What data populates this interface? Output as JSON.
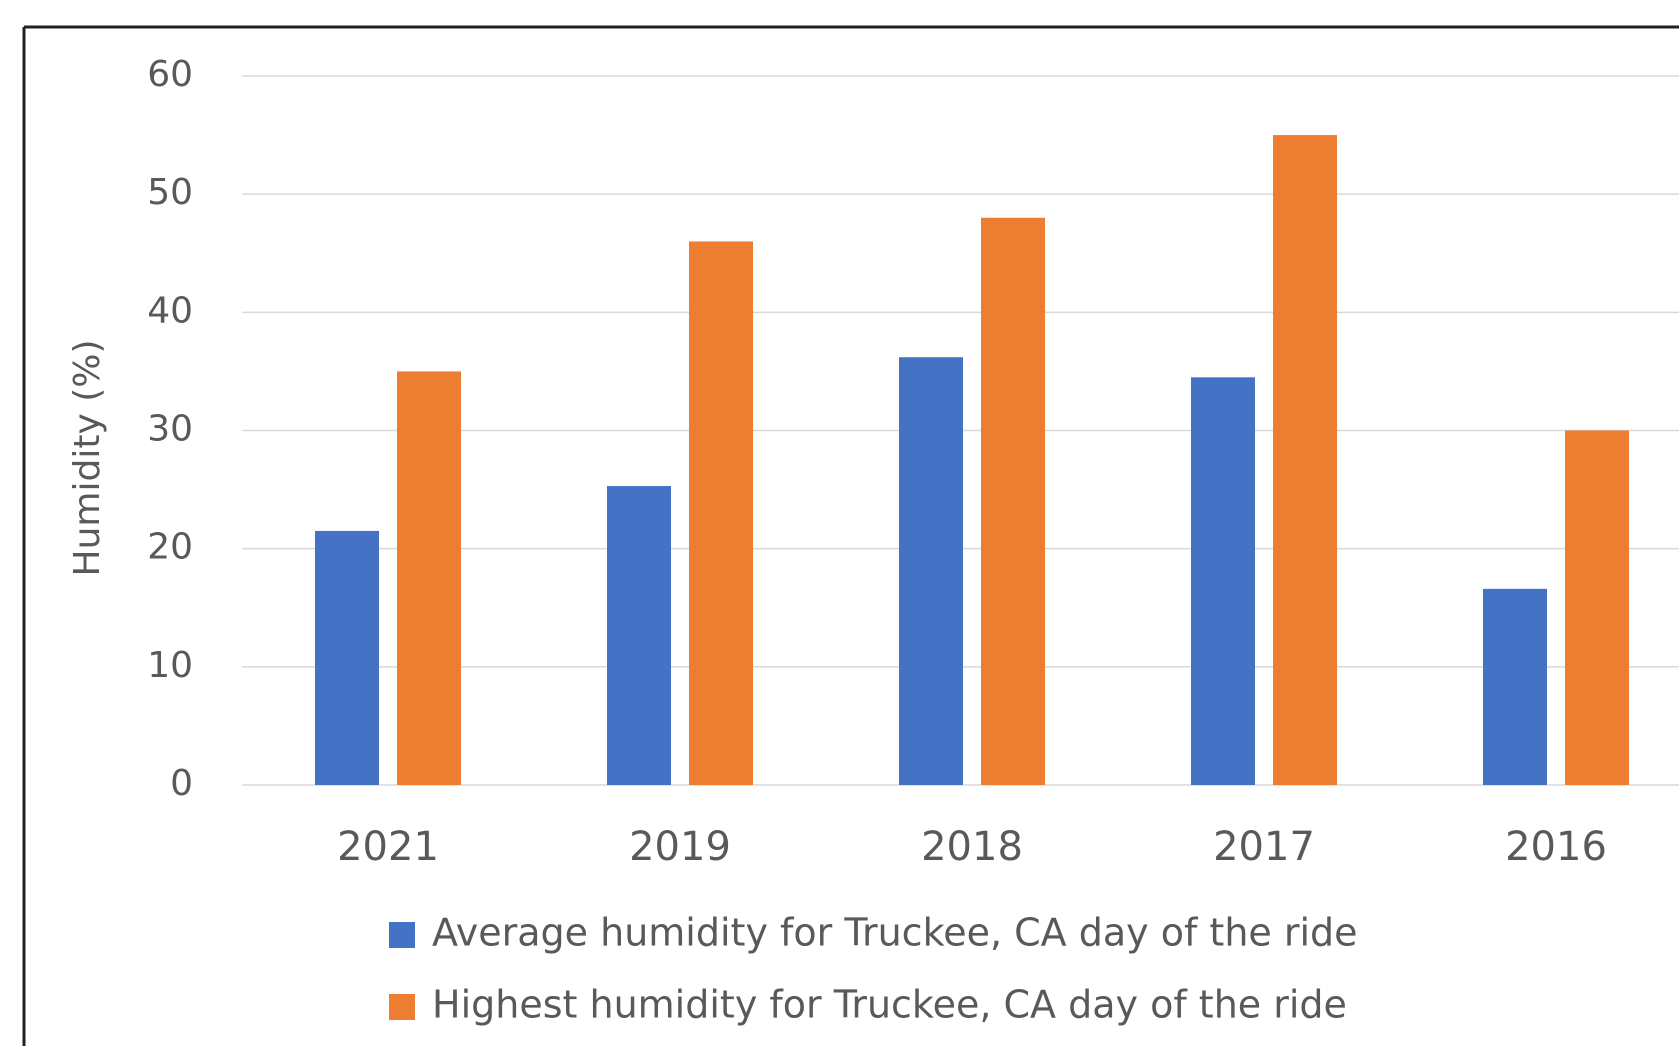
{
  "chart_data": {
    "type": "bar",
    "y_label": "Humidity (%)",
    "categories": [
      "2021",
      "2019",
      "2018",
      "2017",
      "2016"
    ],
    "series": [
      {
        "name": "Average humidity for Truckee, CA day of the ride",
        "color": "#4472c4",
        "values": [
          21.5,
          25.3,
          36.2,
          34.5,
          16.6
        ]
      },
      {
        "name": "Highest humidity for Truckee, CA day of the ride",
        "color": "#ed7d31",
        "values": [
          35,
          46,
          48,
          55,
          30
        ]
      }
    ],
    "ylim": [
      0,
      60
    ],
    "yticks": [
      0,
      10,
      20,
      30,
      40,
      50,
      60
    ],
    "grid": true,
    "legend": "bottom"
  }
}
